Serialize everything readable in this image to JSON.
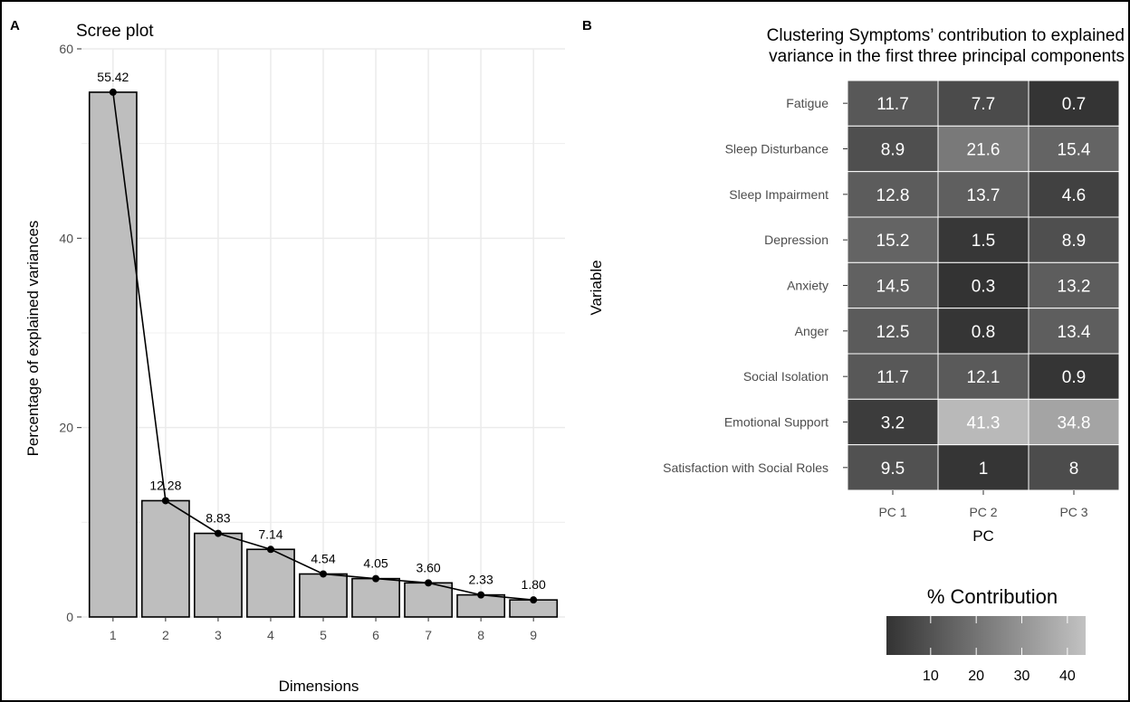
{
  "panels": {
    "a_label": "A",
    "b_label": "B"
  },
  "chart_data": [
    {
      "type": "bar",
      "title": "Scree plot",
      "xlabel": "Dimensions",
      "ylabel": "Percentage of explained variances",
      "categories": [
        "1",
        "2",
        "3",
        "4",
        "5",
        "6",
        "7",
        "8",
        "9"
      ],
      "values": [
        55.42,
        12.28,
        8.83,
        7.14,
        4.54,
        4.05,
        3.6,
        2.33,
        1.8
      ],
      "value_labels": [
        "55.42",
        "12.28",
        "8.83",
        "7.14",
        "4.54",
        "4.05",
        "3.60",
        "2.33",
        "1.80"
      ],
      "overlay_line": true,
      "ylim": [
        0,
        60
      ],
      "yticks": [
        0,
        20,
        40,
        60
      ],
      "grid": true,
      "colors": {
        "bar_fill": "#bebebe",
        "bar_stroke": "#000000",
        "line": "#000000",
        "grid": "#ebebeb"
      }
    },
    {
      "type": "heatmap",
      "title_lines": [
        "Clustering Symptoms’ contribution to explained",
        "variance in the first three principal components"
      ],
      "xlabel": "PC",
      "ylabel": "Variable",
      "x": [
        "PC 1",
        "PC 2",
        "PC 3"
      ],
      "y": [
        "Fatigue",
        "Sleep Disturbance",
        "Sleep Impairment",
        "Depression",
        "Anxiety",
        "Anger",
        "Social Isolation",
        "Emotional Support",
        "Satisfaction with Social Roles"
      ],
      "values": [
        [
          11.7,
          7.7,
          0.7
        ],
        [
          8.9,
          21.6,
          15.4
        ],
        [
          12.8,
          13.7,
          4.6
        ],
        [
          15.2,
          1.5,
          8.9
        ],
        [
          14.5,
          0.3,
          13.2
        ],
        [
          12.5,
          0.8,
          13.4
        ],
        [
          11.7,
          12.1,
          0.9
        ],
        [
          3.2,
          41.3,
          34.8
        ],
        [
          9.5,
          1,
          8
        ]
      ],
      "value_labels": [
        [
          "11.7",
          "7.7",
          "0.7"
        ],
        [
          "8.9",
          "21.6",
          "15.4"
        ],
        [
          "12.8",
          "13.7",
          "4.6"
        ],
        [
          "15.2",
          "1.5",
          "8.9"
        ],
        [
          "14.5",
          "0.3",
          "13.2"
        ],
        [
          "12.5",
          "0.8",
          "13.4"
        ],
        [
          "11.7",
          "12.1",
          "0.9"
        ],
        [
          "3.2",
          "41.3",
          "34.8"
        ],
        [
          "9.5",
          "1",
          "8"
        ]
      ],
      "legend": {
        "title": "% Contribution",
        "ticks": [
          10,
          20,
          30,
          40
        ],
        "range": [
          0.3,
          44
        ],
        "placement": "bottom-right"
      },
      "colors": {
        "low": "#333333",
        "high": "#c2c2c2",
        "cell_border": "#ffffff",
        "cell_text": "#ffffff"
      }
    }
  ]
}
